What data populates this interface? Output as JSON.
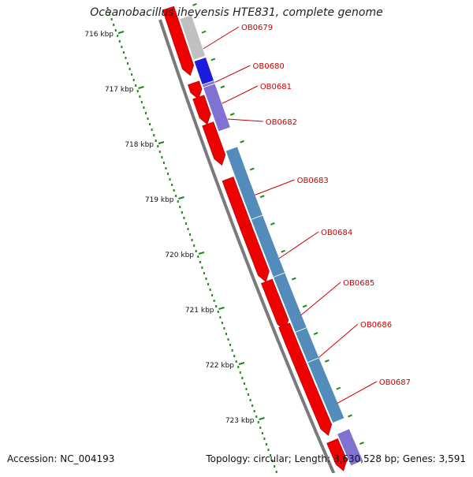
{
  "title": "Oceanobacillus iheyensis HTE831, complete genome",
  "accession": "Accession: NC_004193",
  "summary": "Topology: circular; Length: 3,630,528 bp; Genes: 3,591",
  "ruler": {
    "ticks": [
      {
        "label": "716 kbp",
        "value": 716
      },
      {
        "label": "717 kbp",
        "value": 717
      },
      {
        "label": "718 kbp",
        "value": 718
      },
      {
        "label": "719 kbp",
        "value": 719
      },
      {
        "label": "720 kbp",
        "value": 720
      },
      {
        "label": "721 kbp",
        "value": 721
      },
      {
        "label": "722 kbp",
        "value": 722
      },
      {
        "label": "723 kbp",
        "value": 723
      }
    ]
  },
  "colors": {
    "gene_red": "#ee0000",
    "backbone": "#7a7a7a",
    "tick_green": "#1a8a1a",
    "label_red": "#cc0000",
    "gray_feature": "#bdbdbd",
    "blue_feature": "#1010dd",
    "purple_feature": "#7a6ad0",
    "steel_feature": "#4a86b8"
  },
  "genes": [
    {
      "id": "OB0679",
      "start": 715.85,
      "end": 716.6,
      "kind": "gray"
    },
    {
      "id": "OB0680",
      "start": 716.62,
      "end": 717.05,
      "kind": "blue"
    },
    {
      "id": "OB0681",
      "start": 717.05,
      "end": 717.1,
      "kind": "purple"
    },
    {
      "id": "OB0682",
      "start": 717.1,
      "end": 717.9,
      "kind": "purple"
    },
    {
      "id": "OB0683",
      "start": 718.25,
      "end": 719.5,
      "kind": "steel"
    },
    {
      "id": "OB0684",
      "start": 719.5,
      "end": 720.55,
      "kind": "steel"
    },
    {
      "id": "OB0685",
      "start": 720.55,
      "end": 721.55,
      "kind": "steel"
    },
    {
      "id": "OB0686",
      "start": 721.55,
      "end": 722.1,
      "kind": "steel"
    },
    {
      "id": "OB0687",
      "start": 722.1,
      "end": 723.2,
      "kind": "steel"
    }
  ]
}
